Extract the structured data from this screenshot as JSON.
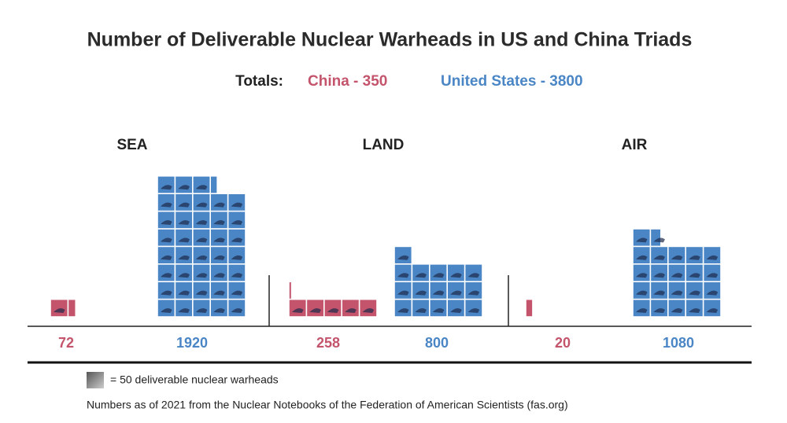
{
  "chart_data": {
    "type": "pictogram",
    "title": "Number of Deliverable Nuclear Warheads in US and China Triads",
    "totals_label": "Totals:",
    "categories": [
      "SEA",
      "LAND",
      "AIR"
    ],
    "series": [
      {
        "name": "China - 350",
        "color": "#c4546c",
        "values": [
          72,
          258,
          20
        ]
      },
      {
        "name": "United States - 3800",
        "color": "#4a86c5",
        "values": [
          1920,
          800,
          1080
        ]
      }
    ],
    "unit_value": 50,
    "unit_label": "= 50 deliverable nuclear warheads",
    "icons_per_row": 5,
    "note": "Numbers as of 2021 from the Nuclear Notebooks of the Federation of American Scientists (fas.org)"
  }
}
